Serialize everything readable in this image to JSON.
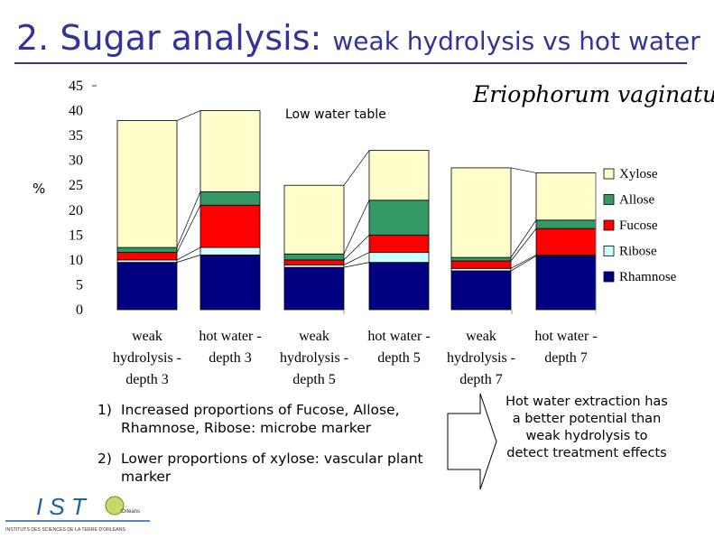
{
  "title": {
    "main": "2. Sugar analysis:",
    "sub": "weak hydrolysis vs hot water"
  },
  "species": "Eriophorum vaginatum",
  "annotation": "Low water table",
  "y_axis_label": "%",
  "notes": [
    {
      "num": "1)",
      "text": "Increased proportions of Fucose, Allose, Rhamnose, Ribose: microbe marker"
    },
    {
      "num": "2)",
      "text": "Lower proportions of xylose: vascular plant marker"
    }
  ],
  "conclusion": "Hot water extraction has a better potential than weak hydrolysis to detect treatment effects",
  "logo": {
    "letters": "I S T",
    "tagline": "INSTITUTS DES SCIENCES DE LA TERRE D'ORLEANS",
    "small": "Orléans"
  },
  "colors": {
    "title": "#333399",
    "Xylose": "#ffffcc",
    "Allose": "#339966",
    "Fucose": "#ff0000",
    "Ribose": "#ccffff",
    "Rhamnose": "#000080"
  },
  "chart_data": {
    "type": "bar",
    "stacked": true,
    "categories": [
      [
        "weak",
        "hydrolysis -",
        "depth 3"
      ],
      [
        "hot water -",
        "depth 3"
      ],
      [
        "weak",
        "hydrolysis -",
        "depth 5"
      ],
      [
        "hot water -",
        "depth 5"
      ],
      [
        "weak",
        "hydrolysis -",
        "depth 7"
      ],
      [
        "hot water -",
        "depth 7"
      ]
    ],
    "series": [
      {
        "name": "Rhamnose",
        "values": [
          9.5,
          11,
          8.5,
          9.5,
          7.8,
          10.8
        ]
      },
      {
        "name": "Ribose",
        "values": [
          0.5,
          1.5,
          0.5,
          2.0,
          0.5,
          0.2
        ]
      },
      {
        "name": "Fucose",
        "values": [
          1.5,
          8.5,
          1.0,
          3.5,
          1.5,
          5.3
        ]
      },
      {
        "name": "Allose",
        "values": [
          1.0,
          2.7,
          1.2,
          7.0,
          0.7,
          1.7
        ]
      },
      {
        "name": "Xylose",
        "values": [
          25.5,
          16.3,
          13.8,
          10.0,
          18.0,
          9.5
        ]
      }
    ],
    "legend_order": [
      "Xylose",
      "Allose",
      "Fucose",
      "Ribose",
      "Rhamnose"
    ],
    "legend_position": "right",
    "ylim": [
      0,
      45
    ],
    "yticks": [
      0,
      5,
      10,
      15,
      20,
      25,
      30,
      35,
      40,
      45
    ],
    "ylabel": "%"
  }
}
